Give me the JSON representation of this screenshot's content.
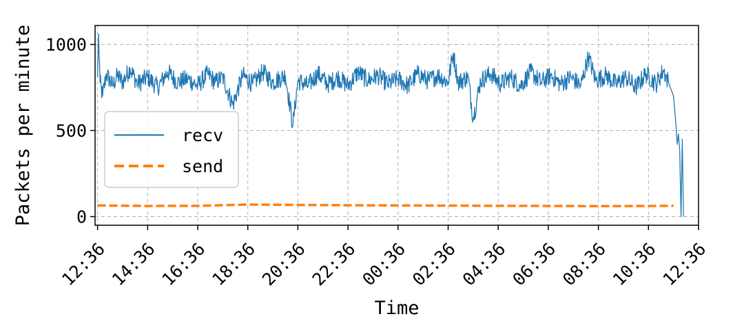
{
  "chart_data": {
    "type": "line",
    "title": "",
    "xlabel": "Time",
    "ylabel": "Packets per minute",
    "x_ticks": [
      "12:36",
      "14:36",
      "16:36",
      "18:36",
      "20:36",
      "22:36",
      "00:36",
      "02:36",
      "04:36",
      "06:36",
      "08:36",
      "10:36",
      "12:36"
    ],
    "x_unit": "hours since first tick",
    "xlim": [
      -0.1,
      24.0
    ],
    "yticks": [
      "0",
      "500",
      "1000"
    ],
    "ylim": [
      -50,
      1110
    ],
    "grid": true,
    "legend_position": "center-left",
    "series": [
      {
        "name": "recv",
        "color": "#1f77b4",
        "style": "solid",
        "points": [
          [
            0.0,
            810
          ],
          [
            0.04,
            1060
          ],
          [
            0.1,
            780
          ],
          [
            0.2,
            700
          ],
          [
            0.35,
            830
          ],
          [
            0.6,
            760
          ],
          [
            0.8,
            820
          ],
          [
            1.0,
            780
          ],
          [
            1.3,
            860
          ],
          [
            1.6,
            770
          ],
          [
            2.0,
            810
          ],
          [
            2.4,
            750
          ],
          [
            2.8,
            840
          ],
          [
            3.2,
            780
          ],
          [
            3.6,
            800
          ],
          [
            4.0,
            760
          ],
          [
            4.4,
            830
          ],
          [
            4.7,
            780
          ],
          [
            5.0,
            810
          ],
          [
            5.4,
            650
          ],
          [
            5.8,
            820
          ],
          [
            6.2,
            770
          ],
          [
            6.6,
            840
          ],
          [
            7.0,
            780
          ],
          [
            7.5,
            820
          ],
          [
            7.8,
            530
          ],
          [
            8.0,
            790
          ],
          [
            8.4,
            760
          ],
          [
            8.8,
            830
          ],
          [
            9.2,
            770
          ],
          [
            9.6,
            810
          ],
          [
            10.0,
            760
          ],
          [
            10.4,
            840
          ],
          [
            10.8,
            790
          ],
          [
            11.2,
            820
          ],
          [
            11.6,
            770
          ],
          [
            12.0,
            800
          ],
          [
            12.4,
            760
          ],
          [
            12.8,
            830
          ],
          [
            13.2,
            790
          ],
          [
            13.6,
            820
          ],
          [
            14.0,
            780
          ],
          [
            14.2,
            950
          ],
          [
            14.4,
            780
          ],
          [
            14.8,
            810
          ],
          [
            15.0,
            570
          ],
          [
            15.3,
            790
          ],
          [
            15.7,
            830
          ],
          [
            16.1,
            770
          ],
          [
            16.5,
            810
          ],
          [
            16.9,
            760
          ],
          [
            17.3,
            840
          ],
          [
            17.7,
            780
          ],
          [
            18.1,
            820
          ],
          [
            18.5,
            770
          ],
          [
            18.9,
            810
          ],
          [
            19.3,
            760
          ],
          [
            19.6,
            930
          ],
          [
            19.9,
            790
          ],
          [
            20.3,
            820
          ],
          [
            20.7,
            770
          ],
          [
            21.1,
            810
          ],
          [
            21.5,
            750
          ],
          [
            21.9,
            830
          ],
          [
            22.3,
            770
          ],
          [
            22.6,
            850
          ],
          [
            22.8,
            780
          ],
          [
            23.0,
            700
          ],
          [
            23.1,
            530
          ],
          [
            23.15,
            420
          ],
          [
            23.2,
            480
          ],
          [
            23.25,
            380
          ],
          [
            23.3,
            0
          ],
          [
            23.35,
            450
          ],
          [
            23.4,
            0
          ]
        ]
      },
      {
        "name": "send",
        "color": "#ff7f0e",
        "style": "dashed",
        "points": [
          [
            0.0,
            65
          ],
          [
            2.0,
            62
          ],
          [
            4.0,
            63
          ],
          [
            6.0,
            70
          ],
          [
            8.0,
            68
          ],
          [
            10.0,
            66
          ],
          [
            12.0,
            65
          ],
          [
            14.0,
            64
          ],
          [
            16.0,
            63
          ],
          [
            18.0,
            62
          ],
          [
            20.0,
            61
          ],
          [
            22.0,
            62
          ],
          [
            23.0,
            63
          ]
        ]
      }
    ]
  }
}
